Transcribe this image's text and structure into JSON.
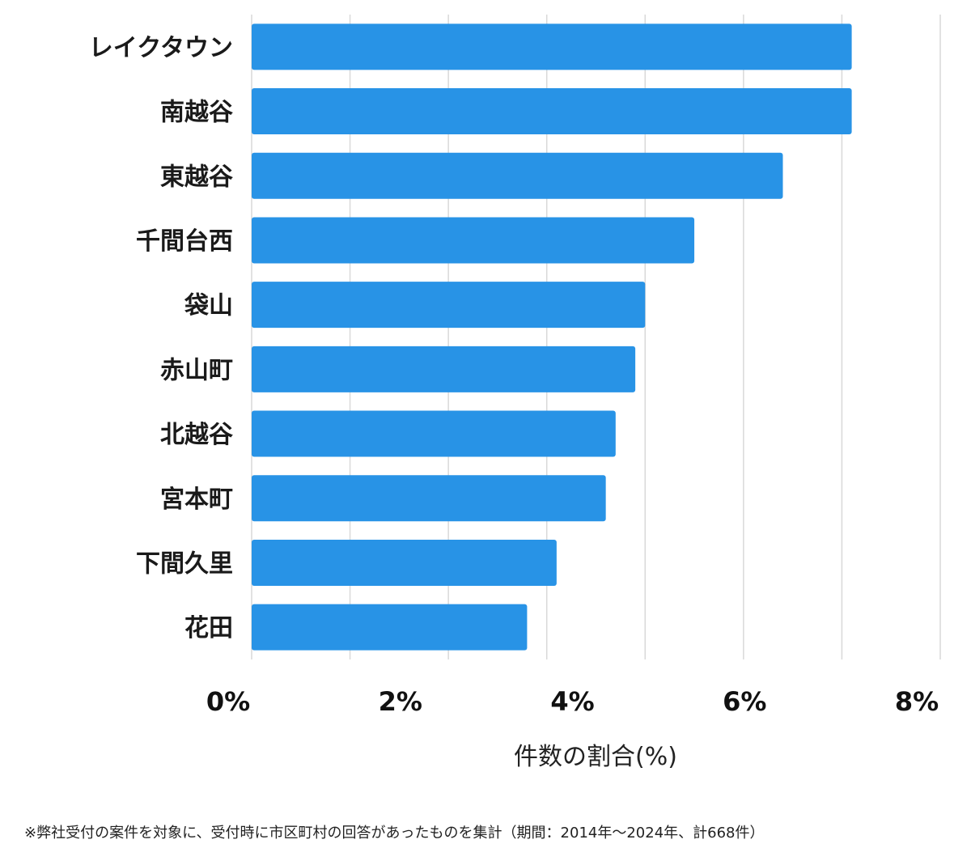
{
  "chart_data": {
    "type": "bar",
    "orientation": "horizontal",
    "categories": [
      "レイクタウン",
      "南越谷",
      "東越谷",
      "千間台西",
      "袋山",
      "赤山町",
      "北越谷",
      "宮本町",
      "下間久里",
      "花田"
    ],
    "values": [
      6.1,
      6.1,
      5.4,
      4.5,
      4.0,
      3.9,
      3.7,
      3.6,
      3.1,
      2.8
    ],
    "title": "",
    "xlabel": "件数の割合(%)",
    "ylabel": "",
    "xlim": [
      0,
      7
    ],
    "xticks": [
      0,
      2,
      4,
      6,
      8
    ],
    "xtick_labels": [
      "0%",
      "2%",
      "4%",
      "6%",
      "8%"
    ],
    "grid": true,
    "bar_color": "#2893e6"
  },
  "footnote": "※弊社受付の案件を対象に、受付時に市区町村の回答があったものを集計（期間：2014年～2024年、計668件）"
}
